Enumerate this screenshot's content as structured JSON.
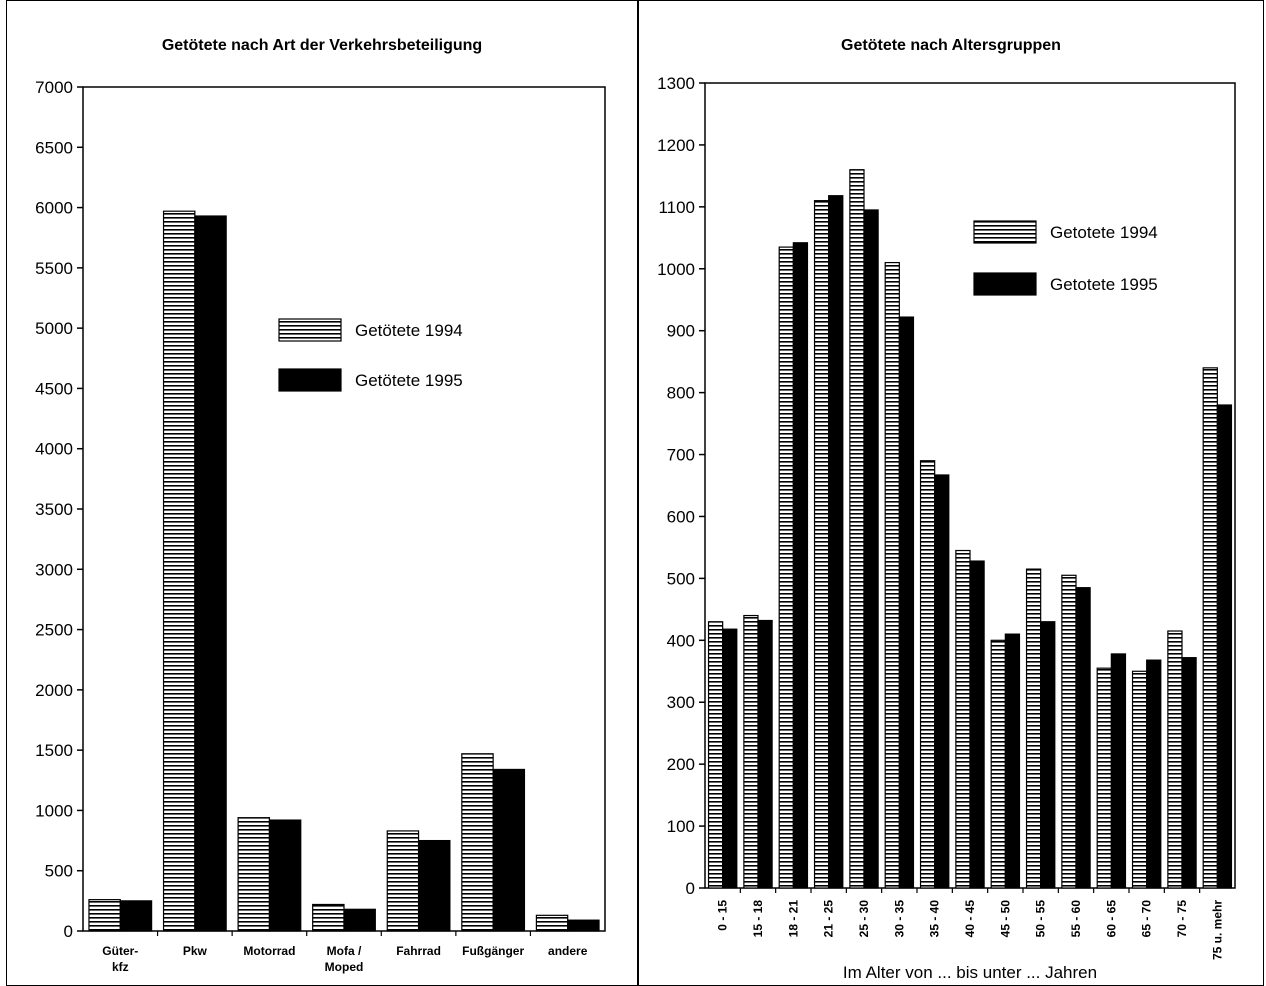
{
  "chart_data": [
    {
      "type": "bar",
      "title": "Getötete nach Art der Verkehrsbeteiligung",
      "xlabel": "",
      "ylabel": "",
      "ylim": [
        0,
        7000
      ],
      "yticks": [
        0,
        500,
        1000,
        1500,
        2000,
        2500,
        3000,
        3500,
        4000,
        4500,
        5000,
        5500,
        6000,
        6500,
        7000
      ],
      "categories": [
        [
          "Güter-",
          "kfz"
        ],
        [
          "Pkw"
        ],
        [
          "Motorrad"
        ],
        [
          "Mofa /",
          "Moped"
        ],
        [
          "Fahrrad"
        ],
        [
          "Fußgänger"
        ],
        [
          "andere"
        ]
      ],
      "series": [
        {
          "name": "Getötete 1994",
          "values": [
            260,
            5970,
            940,
            220,
            830,
            1470,
            130
          ]
        },
        {
          "name": "Getötete 1995",
          "values": [
            250,
            5930,
            920,
            180,
            750,
            1340,
            90
          ]
        }
      ],
      "legend": "center-right",
      "grid": false
    },
    {
      "type": "bar",
      "title": "Getötete nach Altersgruppen",
      "xlabel": "Im Alter von ... bis unter ... Jahren",
      "ylabel": "",
      "ylim": [
        0,
        1300
      ],
      "yticks": [
        0,
        100,
        200,
        300,
        400,
        500,
        600,
        700,
        800,
        900,
        1000,
        1100,
        1200,
        1300
      ],
      "categories": [
        "0 - 15",
        "15 - 18",
        "18 - 21",
        "21 - 25",
        "25 - 30",
        "30 - 35",
        "35 - 40",
        "40 - 45",
        "45 - 50",
        "50 - 55",
        "55 - 60",
        "60 - 65",
        "65 - 70",
        "70 - 75",
        "75 u. mehr"
      ],
      "series": [
        {
          "name": "Getotete 1994",
          "values": [
            430,
            440,
            1035,
            1110,
            1160,
            1010,
            690,
            545,
            400,
            515,
            505,
            355,
            350,
            415,
            840
          ]
        },
        {
          "name": "Getotete 1995",
          "values": [
            418,
            432,
            1042,
            1118,
            1095,
            922,
            667,
            528,
            410,
            430,
            485,
            378,
            368,
            372,
            780
          ]
        }
      ],
      "legend": "top-right",
      "grid": false
    }
  ],
  "colors": {
    "bar_1994_fill": "#ffffff",
    "bar_1994_stripes": "#000000",
    "bar_1995_fill": "#000000",
    "axis": "#000000"
  }
}
